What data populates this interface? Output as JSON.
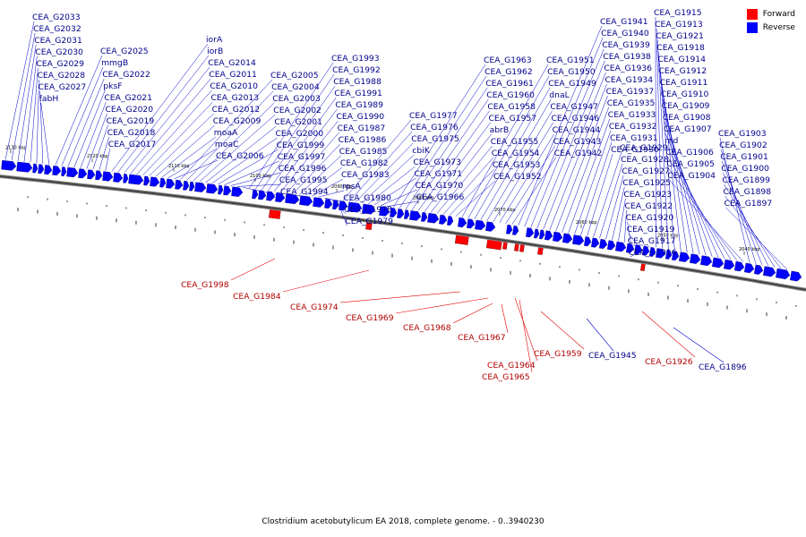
{
  "caption": "Clostridium acetobutylicum EA 2018, complete genome. - 0..3940230",
  "legend": [
    {
      "label": "Forward",
      "color": "#ff0000"
    },
    {
      "label": "Reverse",
      "color": "#0000ff"
    }
  ],
  "colors": {
    "forward": "#ff0000",
    "reverse": "#0000ff",
    "backbone": "#444444"
  },
  "scale_ticks": [
    "2130 kbp",
    "2120 kbp",
    "2110 kbp",
    "2100 kbp",
    "2090 kbp",
    "2080 kbp",
    "2070 kbp",
    "2060 kbp",
    "2050 kbp",
    "2040 kbp"
  ],
  "reverse_labels": [
    "CEA_G2033",
    "CEA_G2032",
    "CEA_G2031",
    "CEA_G2030",
    "CEA_G2029",
    "CEA_G2028",
    "CEA_G2027",
    "fabH",
    "CEA_G2025",
    "mmgB",
    "CEA_G2022",
    "pksF",
    "CEA_G2021",
    "CEA_G2020",
    "CEA_G2019",
    "CEA_G2018",
    "CEA_G2017",
    "iorA",
    "iorB",
    "CEA_G2014",
    "CEA_G2011",
    "CEA_G2010",
    "CEA_G2013",
    "CEA_G2012",
    "CEA_G2009",
    "moaA",
    "moaC",
    "CEA_G2006",
    "CEA_G2005",
    "CEA_G2004",
    "CEA_G2003",
    "CEA_G2002",
    "CEA_G2001",
    "CEA_G2000",
    "CEA_G1999",
    "CEA_G1997",
    "CEA_G1996",
    "CEA_G1995",
    "CEA_G1994",
    "CEA_G1993",
    "CEA_G1992",
    "CEA_G1988",
    "CEA_G1991",
    "CEA_G1989",
    "CEA_G1990",
    "CEA_G1987",
    "CEA_G1986",
    "CEA_G1985",
    "CEA_G1982",
    "CEA_G1983",
    "rpsA",
    "CEA_G1980",
    "CEA_G1978",
    "CEA_G1979",
    "CEA_G1977",
    "CEA_G1976",
    "CEA_G1975",
    "cbiK",
    "CEA_G1973",
    "CEA_G1971",
    "CEA_G1970",
    "CEA_G1966",
    "CEA_G1963",
    "CEA_G1962",
    "CEA_G1961",
    "CEA_G1960",
    "CEA_G1958",
    "CEA_G1957",
    "abrB",
    "CEA_G1955",
    "CEA_G1954",
    "CEA_G1953",
    "CEA_G1952",
    "CEA_G1951",
    "CEA_G1950",
    "CEA_G1949",
    "dnaL",
    "CEA_G1947",
    "CEA_G1946",
    "CEA_G1944",
    "CEA_G1943",
    "CEA_G1942",
    "CEA_G1941",
    "CEA_G1940",
    "CEA_G1939",
    "CEA_G1938",
    "CEA_G1936",
    "CEA_G1934",
    "CEA_G1937",
    "CEA_G1935",
    "CEA_G1933",
    "CEA_G1932",
    "CEA_G1931",
    "CEA_G1930",
    "CEA_G1929",
    "CEA_G1928",
    "CEA_G1927",
    "CEA_G1925",
    "CEA_G1923",
    "CEA_G1922",
    "CEA_G1920",
    "CEA_G1919",
    "CEA_G1917",
    "CEA_G1916",
    "CEA_G1915",
    "CEA_G1913",
    "CEA_G1921",
    "CEA_G1918",
    "CEA_G1914",
    "CEA_G1912",
    "CEA_G1911",
    "CEA_G1910",
    "CEA_G1909",
    "CEA_G1908",
    "CEA_G1907",
    "rnd",
    "CEA_G1906",
    "CEA_G1905",
    "CEA_G1904",
    "CEA_G1903",
    "CEA_G1902",
    "CEA_G1901",
    "CEA_G1900",
    "CEA_G1899",
    "CEA_G1898",
    "CEA_G1897",
    "CEA_G1945",
    "CEA_G1896"
  ],
  "forward_labels": [
    "CEA_G1998",
    "CEA_G1984",
    "CEA_G1974",
    "CEA_G1969",
    "CEA_G1968",
    "CEA_G1967",
    "CEA_G1964",
    "CEA_G1965",
    "CEA_G1959",
    "CEA_G1926"
  ]
}
